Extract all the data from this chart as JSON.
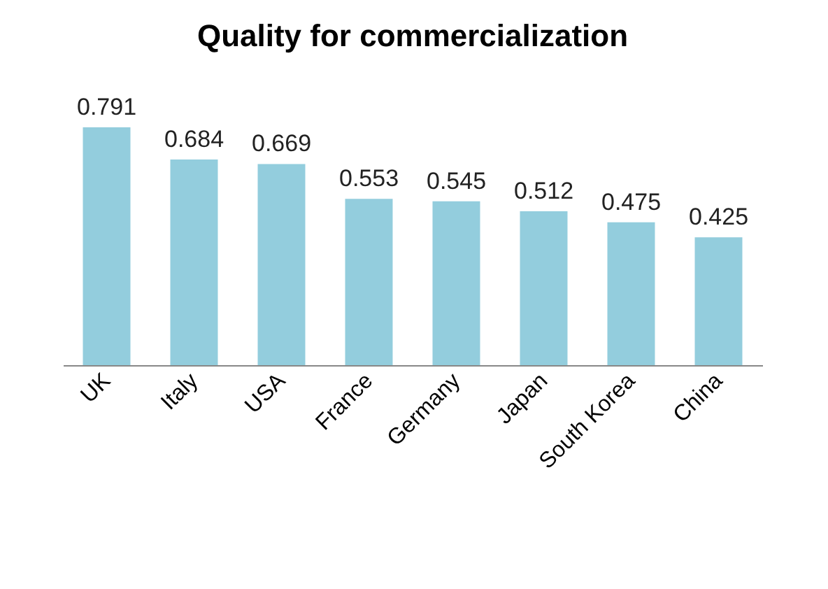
{
  "chart_data": {
    "type": "bar",
    "title": "Quality for commercialization",
    "categories": [
      "UK",
      "Italy",
      "USA",
      "France",
      "Germany",
      "Japan",
      "South Korea",
      "China"
    ],
    "values": [
      0.791,
      0.684,
      0.669,
      0.553,
      0.545,
      0.512,
      0.475,
      0.425
    ],
    "color": "#93cddd",
    "data_labels": true
  }
}
